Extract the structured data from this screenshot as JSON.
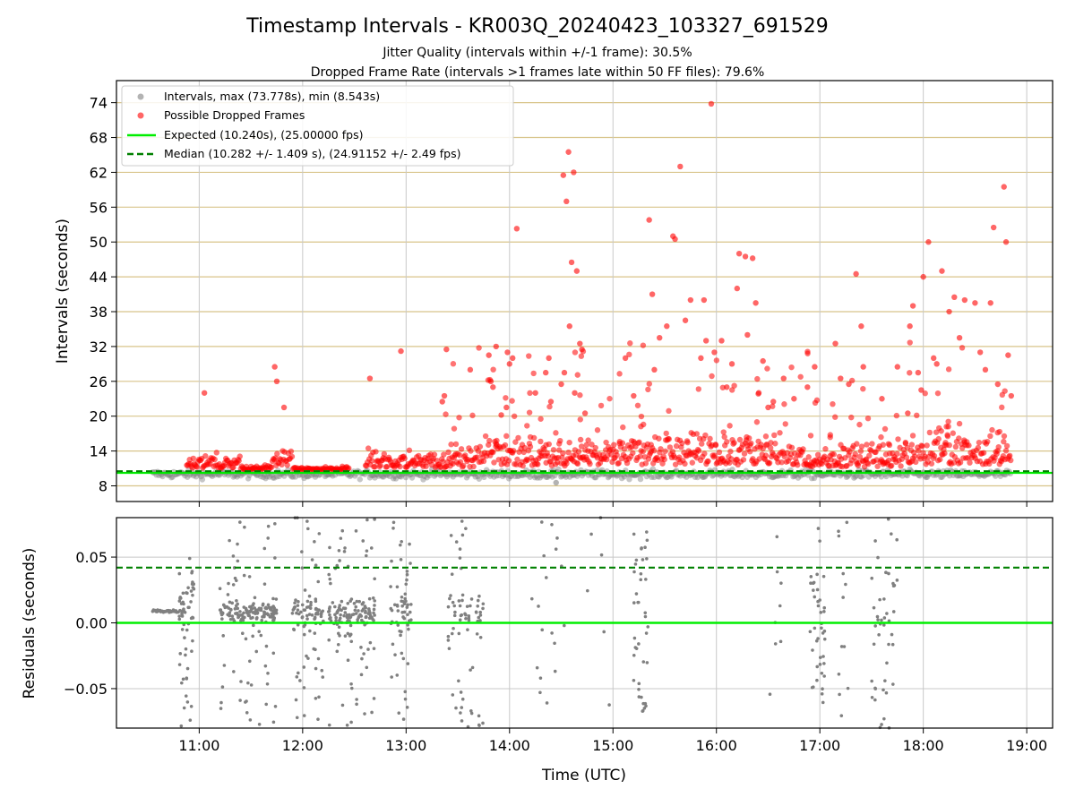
{
  "title": "Timestamp Intervals - KR003Q_20240423_103327_691529",
  "subtitle_1": "Jitter Quality (intervals within +/-1 frame): 30.5%",
  "subtitle_2": "Dropped Frame Rate (intervals >1 frames late within 50 FF files): 79.6%",
  "colors": {
    "intervals": "#808080",
    "dropped": "#ff0000",
    "expected": "#00ee00",
    "median": "#008000",
    "hgrid_top": "#d8c48a",
    "grid": "#c8c8c8"
  },
  "chart_data": [
    {
      "type": "scatter",
      "ylabel": "Intervals (seconds)",
      "xlim_hours": [
        10.2,
        19.25
      ],
      "ylim": [
        5.3,
        77.8
      ],
      "yticks": [
        8,
        14,
        20,
        26,
        32,
        38,
        44,
        50,
        56,
        62,
        68,
        74
      ],
      "legend": {
        "placement": "top-left",
        "entries": [
          "Intervals, max (73.778s), min (8.543s)",
          "Possible Dropped Frames",
          "Expected (10.240s), (25.00000 fps)",
          "Median (10.282 +/- 1.409 s), (24.91152 +/- 2.49 fps)"
        ]
      },
      "expected_value": 10.24,
      "median_value": 10.282,
      "max_interval": 73.778,
      "min_interval": 8.543,
      "outliers_red": [
        [
          11.05,
          24.0
        ],
        [
          11.73,
          28.5
        ],
        [
          11.75,
          26.0
        ],
        [
          11.82,
          21.5
        ],
        [
          12.65,
          26.5
        ],
        [
          12.95,
          31.2
        ],
        [
          13.35,
          22.5
        ],
        [
          13.37,
          23.5
        ],
        [
          13.39,
          31.5
        ],
        [
          13.62,
          28.0
        ],
        [
          13.8,
          30.5
        ],
        [
          13.82,
          26.0
        ],
        [
          13.84,
          25.0
        ],
        [
          13.87,
          32.0
        ],
        [
          13.92,
          20.2
        ],
        [
          13.97,
          21.5
        ],
        [
          13.98,
          31.0
        ],
        [
          14.0,
          29.0
        ],
        [
          14.03,
          30.0
        ],
        [
          14.07,
          52.3
        ],
        [
          14.25,
          24.0
        ],
        [
          14.35,
          27.5
        ],
        [
          14.38,
          30.0
        ],
        [
          14.4,
          22.5
        ],
        [
          14.5,
          25.5
        ],
        [
          14.52,
          61.5
        ],
        [
          14.55,
          57.0
        ],
        [
          14.57,
          65.5
        ],
        [
          14.6,
          46.5
        ],
        [
          14.62,
          62.0
        ],
        [
          14.65,
          45.0
        ],
        [
          14.68,
          32.5
        ],
        [
          14.7,
          31.5
        ],
        [
          14.58,
          35.5
        ],
        [
          14.53,
          27.5
        ],
        [
          14.63,
          24.0
        ],
        [
          14.73,
          20.5
        ],
        [
          15.12,
          30.0
        ],
        [
          15.2,
          23.5
        ],
        [
          15.35,
          53.8
        ],
        [
          15.38,
          41.0
        ],
        [
          15.4,
          28.0
        ],
        [
          15.45,
          33.5
        ],
        [
          15.52,
          35.5
        ],
        [
          15.58,
          51.0
        ],
        [
          15.6,
          50.5
        ],
        [
          15.65,
          63.0
        ],
        [
          15.7,
          36.5
        ],
        [
          15.75,
          40.0
        ],
        [
          15.85,
          30.0
        ],
        [
          15.9,
          33.0
        ],
        [
          15.95,
          73.8
        ],
        [
          15.98,
          31.0
        ],
        [
          16.05,
          33.0
        ],
        [
          16.1,
          25.0
        ],
        [
          16.15,
          29.0
        ],
        [
          16.2,
          42.0
        ],
        [
          16.22,
          48.0
        ],
        [
          16.28,
          47.5
        ],
        [
          16.35,
          47.2
        ],
        [
          16.38,
          39.5
        ],
        [
          16.45,
          29.5
        ],
        [
          16.5,
          21.5
        ],
        [
          16.55,
          22.5
        ],
        [
          16.65,
          26.5
        ],
        [
          16.75,
          23.0
        ],
        [
          16.88,
          25.0
        ],
        [
          16.95,
          28.5
        ],
        [
          17.15,
          32.5
        ],
        [
          17.2,
          26.5
        ],
        [
          17.28,
          25.5
        ],
        [
          17.35,
          44.5
        ],
        [
          17.4,
          35.5
        ],
        [
          17.42,
          28.5
        ],
        [
          17.6,
          23.0
        ],
        [
          17.75,
          28.5
        ],
        [
          17.85,
          20.5
        ],
        [
          17.87,
          35.5
        ],
        [
          17.9,
          39.0
        ],
        [
          17.95,
          27.5
        ],
        [
          18.0,
          44.0
        ],
        [
          18.05,
          50.0
        ],
        [
          18.1,
          30.0
        ],
        [
          18.13,
          29.0
        ],
        [
          18.18,
          45.0
        ],
        [
          18.25,
          38.0
        ],
        [
          18.3,
          40.5
        ],
        [
          18.4,
          40.0
        ],
        [
          18.5,
          39.5
        ],
        [
          18.55,
          31.0
        ],
        [
          18.65,
          39.5
        ],
        [
          18.68,
          52.5
        ],
        [
          18.72,
          25.5
        ],
        [
          18.78,
          59.5
        ],
        [
          18.8,
          50.0
        ],
        [
          18.82,
          30.5
        ],
        [
          18.85,
          23.5
        ],
        [
          18.6,
          28.0
        ],
        [
          18.35,
          33.5
        ],
        [
          17.98,
          24.5
        ],
        [
          15.88,
          40.0
        ],
        [
          16.3,
          34.0
        ]
      ]
    },
    {
      "type": "scatter",
      "ylabel": "Residuals (seconds)",
      "xlabel": "Time (UTC)",
      "xlim_hours": [
        10.2,
        19.25
      ],
      "ylim": [
        -0.08,
        0.08
      ],
      "yticks": [
        -0.05,
        0.0,
        0.05
      ],
      "ytick_labels": [
        "−0.05",
        "0.00",
        "0.05"
      ],
      "expected_residual": 0.0,
      "median_residual": 0.042,
      "xticks_hours": [
        11,
        12,
        13,
        14,
        15,
        16,
        17,
        18,
        19
      ],
      "xtick_labels": [
        "11:00",
        "12:00",
        "13:00",
        "14:00",
        "15:00",
        "16:00",
        "17:00",
        "18:00",
        "19:00"
      ]
    }
  ]
}
